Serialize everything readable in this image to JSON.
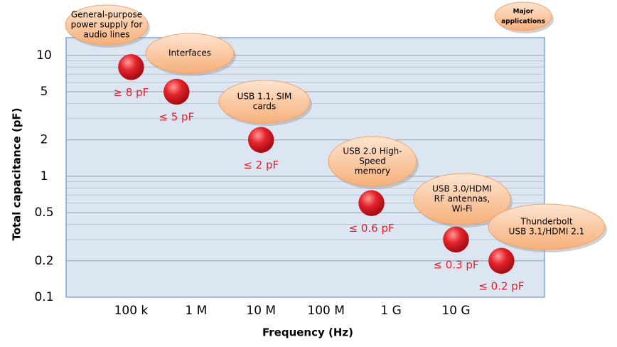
{
  "chart_data": {
    "type": "scatter",
    "x_label": "Frequency (Hz)",
    "y_label": "Total capacitance (pF)",
    "x_log": true,
    "y_log": true,
    "grid": true,
    "minor_grid": true,
    "xlim": [
      10000,
      230000000000
    ],
    "ylim": [
      0.1,
      14
    ],
    "xticks": [
      {
        "value": 100000,
        "label": "100 k"
      },
      {
        "value": 1000000,
        "label": "1 M"
      },
      {
        "value": 10000000,
        "label": "10 M"
      },
      {
        "value": 100000000,
        "label": "100 M"
      },
      {
        "value": 1000000000,
        "label": "1 G"
      },
      {
        "value": 10000000000,
        "label": "10 G"
      }
    ],
    "yticks": [
      0.1,
      0.2,
      0.5,
      1,
      2,
      5,
      10
    ],
    "color": "#d9141c",
    "label_color": "#e0202b",
    "x": [
      100000,
      500000,
      10000000,
      500000000,
      10000000000,
      50000000000
    ],
    "values": [
      8,
      5,
      2,
      0.6,
      0.3,
      0.2
    ],
    "value_labels": [
      "≥ 8 pF",
      "≤ 5 pF",
      "≤ 2 pF",
      "≤ 0.6 pF",
      "≤ 0.3 pF",
      "≤ 0.2 pF"
    ],
    "legend_title": [
      "Major",
      "applications"
    ],
    "annotations": [
      {
        "lines": [
          "General-purpose",
          "power supply for",
          "audio lines"
        ]
      },
      {
        "lines": [
          "Interfaces"
        ]
      },
      {
        "lines": [
          "USB 1.1, SIM",
          "cards"
        ]
      },
      {
        "lines": [
          "USB 2.0 High-",
          "Speed",
          "memory"
        ]
      },
      {
        "lines": [
          "USB 3.0/HDMI",
          "RF antennas,",
          "Wi-Fi"
        ]
      },
      {
        "lines": [
          "Thunderbolt",
          "USB 3.1/HDMI  2.1"
        ]
      }
    ]
  }
}
